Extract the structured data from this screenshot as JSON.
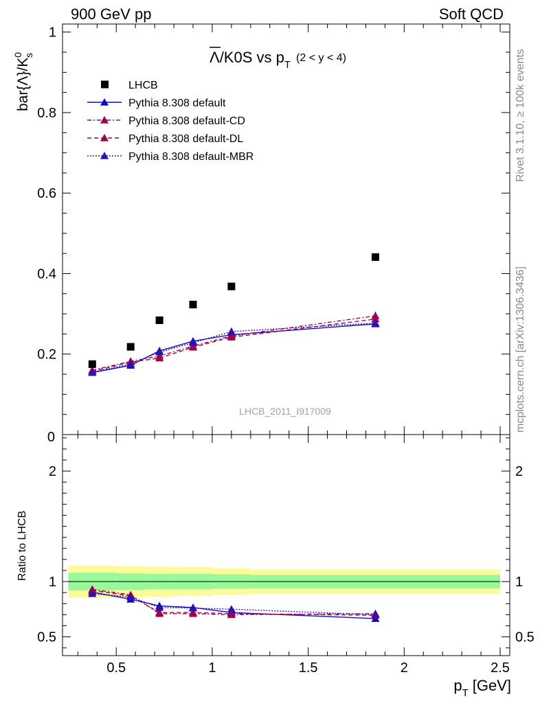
{
  "header": {
    "left": "900 GeV pp",
    "right": "Soft QCD"
  },
  "side_labels": {
    "rivet": "Rivet 3.1.10, ≥ 100k events",
    "mcplots": "mcplots.cern.ch [arXiv:1306.3436]"
  },
  "colors": {
    "data": "#000000",
    "default": "#0a0ad0",
    "cd": "#a00050",
    "dl": "#a00050",
    "mbr": "#3010b0",
    "band_inner": "#99f899",
    "band_outer": "#fbfb99"
  },
  "chart_data": [
    {
      "type": "line",
      "title": "Λ̅/K0S vs pT (2 < y < 4)",
      "title_main": "Λ/K0S vs p",
      "title_sub": "T",
      "title_cut": "(2 < y < 4)",
      "ylabel": "bar{Λ}/K0s",
      "ylabel_main": "bar{Λ}/K",
      "ylabel_sup": "0",
      "ylabel_sub": "s",
      "watermark": "LHCB_2011_I917009",
      "xlim": [
        0.22,
        2.55
      ],
      "ylim": [
        0,
        1.02
      ],
      "yticks": [
        0.2,
        0.4,
        0.6,
        0.8,
        1
      ],
      "ytick_labels": [
        "0.2",
        "0.4",
        "0.6",
        "0.8",
        "1"
      ],
      "y_zero_label": "0",
      "legend": [
        "LHCB",
        "Pythia 8.308 default",
        "Pythia 8.308 default-CD",
        "Pythia 8.308 default-DL",
        "Pythia 8.308 default-MBR"
      ],
      "x": [
        0.375,
        0.575,
        0.725,
        0.9,
        1.1,
        1.85
      ],
      "series": [
        {
          "name": "LHCB",
          "values": [
            0.175,
            0.218,
            0.284,
            0.323,
            0.368,
            0.441
          ]
        },
        {
          "name": "Pythia 8.308 default",
          "values": [
            0.154,
            0.172,
            0.208,
            0.232,
            0.248,
            0.275
          ],
          "errors": [
            0.004,
            0.005,
            0.006,
            0.008,
            0.009,
            0.008
          ]
        },
        {
          "name": "Pythia 8.308 default-CD",
          "values": [
            0.16,
            0.182,
            0.195,
            0.22,
            0.245,
            0.295
          ],
          "errors": [
            0.004,
            0.005,
            0.006,
            0.008,
            0.009,
            0.01
          ]
        },
        {
          "name": "Pythia 8.308 default-DL",
          "values": [
            0.157,
            0.18,
            0.19,
            0.217,
            0.242,
            0.287
          ],
          "errors": [
            0.004,
            0.005,
            0.006,
            0.008,
            0.009,
            0.01
          ]
        },
        {
          "name": "Pythia 8.308 default-MBR",
          "values": [
            0.155,
            0.175,
            0.205,
            0.228,
            0.256,
            0.277
          ],
          "errors": [
            0.004,
            0.005,
            0.006,
            0.008,
            0.009,
            0.009
          ]
        }
      ]
    },
    {
      "type": "line",
      "title": "Ratio to LHCB",
      "ylabel": "Ratio to LHCB",
      "xlabel": "pT [GeV]",
      "xlabel_main": "p",
      "xlabel_sub": "T",
      "xlabel_unit": "[GeV]",
      "xlim": [
        0.22,
        2.55
      ],
      "ylim": [
        0.33,
        2.33
      ],
      "xticks": [
        0.5,
        1,
        1.5,
        2,
        2.5
      ],
      "xtick_labels": [
        "0.5",
        "1",
        "1.5",
        "2",
        "2.5"
      ],
      "yticks": [
        0.5,
        1,
        2
      ],
      "ytick_labels": [
        "0.5",
        "1",
        "2"
      ],
      "band_bins": [
        0.25,
        0.5,
        0.65,
        0.8,
        1.0,
        1.2,
        2.5
      ],
      "band_inner_half": [
        0.08,
        0.075,
        0.07,
        0.07,
        0.065,
        0.06
      ],
      "band_outer_half": [
        0.145,
        0.14,
        0.135,
        0.13,
        0.12,
        0.11
      ],
      "x": [
        0.375,
        0.575,
        0.725,
        0.9,
        1.1,
        1.85
      ],
      "series": [
        {
          "name": "Pythia 8.308 default",
          "values": [
            0.905,
            0.84,
            0.78,
            0.765,
            0.72,
            0.665
          ],
          "errors": [
            0.02,
            0.022,
            0.025,
            0.025,
            0.028,
            0.022
          ]
        },
        {
          "name": "Pythia 8.308 default-CD",
          "values": [
            0.93,
            0.88,
            0.71,
            0.71,
            0.7,
            0.71
          ],
          "errors": [
            0.02,
            0.022,
            0.025,
            0.025,
            0.028,
            0.022
          ]
        },
        {
          "name": "Pythia 8.308 default-DL",
          "values": [
            0.92,
            0.87,
            0.72,
            0.72,
            0.71,
            0.695
          ],
          "errors": [
            0.02,
            0.022,
            0.025,
            0.025,
            0.028,
            0.022
          ]
        },
        {
          "name": "Pythia 8.308 default-MBR",
          "values": [
            0.89,
            0.86,
            0.765,
            0.76,
            0.75,
            0.7
          ],
          "errors": [
            0.02,
            0.022,
            0.025,
            0.025,
            0.028,
            0.022
          ]
        }
      ]
    }
  ]
}
